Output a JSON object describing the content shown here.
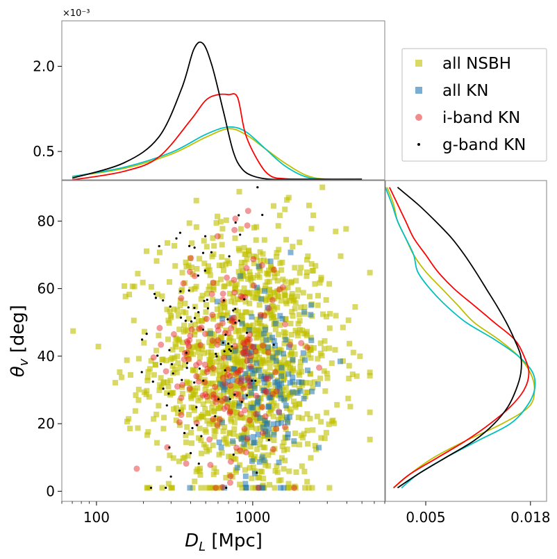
{
  "chart_data": [
    {
      "panel": "top-marginal",
      "type": "line",
      "exponent_label": "×10⁻³",
      "xscale": "log",
      "xlim": [
        60,
        7000
      ],
      "ylim": [
        0.0,
        2.8
      ],
      "yticks": [
        0.5,
        2.0
      ],
      "ytick_labels": [
        "0.5",
        "2.0"
      ],
      "series": [
        {
          "color": "#bfbf00",
          "x": [
            70,
            150,
            300,
            500,
            700,
            900,
            1200,
            1600,
            2200,
            3000,
            5000
          ],
          "y": [
            0.06,
            0.2,
            0.45,
            0.75,
            0.9,
            0.8,
            0.55,
            0.3,
            0.08,
            0.01,
            0.01
          ]
        },
        {
          "color": "#00bfbf",
          "x": [
            70,
            150,
            300,
            500,
            700,
            900,
            1200,
            1600,
            2200,
            3000,
            5000
          ],
          "y": [
            0.06,
            0.22,
            0.48,
            0.8,
            0.93,
            0.85,
            0.55,
            0.25,
            0.05,
            0.01,
            0.01
          ]
        },
        {
          "color": "#ff0000",
          "x": [
            70,
            150,
            250,
            400,
            500,
            600,
            700,
            800,
            900,
            1100,
            1300,
            1600,
            2200,
            5000
          ],
          "y": [
            0.0,
            0.15,
            0.4,
            1.05,
            1.4,
            1.5,
            1.5,
            1.45,
            0.8,
            0.3,
            0.07,
            0.02,
            0.01,
            0.01
          ]
        },
        {
          "color": "#000000",
          "x": [
            70,
            150,
            250,
            350,
            420,
            480,
            550,
            650,
            750,
            850,
            1000,
            1300,
            2000,
            5000
          ],
          "y": [
            0.03,
            0.3,
            0.75,
            1.6,
            2.3,
            2.4,
            2.0,
            1.2,
            0.5,
            0.2,
            0.07,
            0.01,
            0.01,
            0.01
          ]
        }
      ]
    },
    {
      "panel": "scatter",
      "type": "scatter",
      "xlabel": "D_L [Mpc]",
      "ylabel": "θ_v [deg]",
      "xscale": "log",
      "xlim": [
        60,
        7000
      ],
      "ylim": [
        -3,
        92
      ],
      "xticks": [
        100,
        1000
      ],
      "xtick_labels": [
        "100",
        "1000"
      ],
      "yticks": [
        0,
        20,
        40,
        60,
        80
      ],
      "ytick_labels": [
        "0",
        "20",
        "40",
        "60",
        "80"
      ],
      "legend_position": "top-right",
      "series": [
        {
          "name": "all NSBH",
          "color": "#bfbf00",
          "marker": "square",
          "n_points": 1200,
          "distribution": {
            "logx_mean": 2.95,
            "logx_sd": 0.3,
            "y_mean": 38,
            "y_sd": 20
          }
        },
        {
          "name": "all KN",
          "color": "#1f77b4",
          "marker": "square",
          "n_points": 170,
          "distribution": {
            "logx_mean": 3.08,
            "logx_sd": 0.15,
            "y_mean": 32,
            "y_sd": 15
          }
        },
        {
          "name": "i-band KN",
          "color": "#e41a1c",
          "marker": "circle",
          "n_points": 180,
          "distribution": {
            "logx_mean": 2.85,
            "logx_sd": 0.2,
            "y_mean": 38,
            "y_sd": 17
          }
        },
        {
          "name": "g-band KN",
          "color": "#000000",
          "marker": "dot",
          "n_points": 95,
          "distribution": {
            "logx_mean": 2.7,
            "logx_sd": 0.22,
            "y_mean": 42,
            "y_sd": 22
          }
        }
      ]
    },
    {
      "panel": "right-marginal",
      "type": "line",
      "xlim": [
        0.0,
        0.02
      ],
      "xticks": [
        0.005,
        0.018
      ],
      "xtick_labels": [
        "0.005",
        "0.018"
      ],
      "ylim": [
        -3,
        92
      ],
      "series": [
        {
          "color": "#bfbf00",
          "y": [
            1,
            5,
            10,
            15,
            20,
            25,
            30,
            35,
            40,
            45,
            50,
            55,
            60,
            65,
            70,
            75,
            80,
            85,
            90
          ],
          "x": [
            0.001,
            0.003,
            0.006,
            0.01,
            0.0145,
            0.0178,
            0.0185,
            0.018,
            0.0165,
            0.014,
            0.011,
            0.009,
            0.007,
            0.005,
            0.0035,
            0.0025,
            0.0015,
            0.001,
            0.0002
          ]
        },
        {
          "color": "#00bfbf",
          "y": [
            1,
            5,
            10,
            15,
            20,
            25,
            30,
            35,
            40,
            45,
            50,
            55,
            60,
            65,
            70,
            75,
            80,
            85,
            90
          ],
          "x": [
            0.002,
            0.004,
            0.0075,
            0.0115,
            0.0155,
            0.0175,
            0.0185,
            0.0183,
            0.0165,
            0.0135,
            0.01,
            0.0075,
            0.0055,
            0.004,
            0.0035,
            0.0025,
            0.0015,
            0.0008,
            0.0
          ]
        },
        {
          "color": "#ff0000",
          "y": [
            1,
            5,
            10,
            15,
            20,
            25,
            30,
            35,
            40,
            45,
            50,
            55,
            60,
            65,
            70,
            75,
            80,
            85,
            90
          ],
          "x": [
            0.001,
            0.003,
            0.0065,
            0.01,
            0.013,
            0.0155,
            0.0172,
            0.0178,
            0.0172,
            0.016,
            0.0135,
            0.011,
            0.0085,
            0.0065,
            0.005,
            0.0035,
            0.0025,
            0.0015,
            0.0005
          ]
        },
        {
          "color": "#000000",
          "y": [
            1,
            5,
            10,
            15,
            20,
            25,
            30,
            35,
            40,
            45,
            50,
            55,
            60,
            65,
            70,
            75,
            80,
            85,
            90
          ],
          "x": [
            0.0015,
            0.004,
            0.0075,
            0.011,
            0.0135,
            0.0152,
            0.0162,
            0.0168,
            0.0168,
            0.016,
            0.015,
            0.0138,
            0.0125,
            0.0112,
            0.0098,
            0.0082,
            0.0062,
            0.004,
            0.0015
          ]
        }
      ]
    }
  ],
  "legend": {
    "items": [
      {
        "label": "all NSBH",
        "color": "#bfbf00",
        "marker": "square"
      },
      {
        "label": "all KN",
        "color": "#1f77b4",
        "marker": "square"
      },
      {
        "label": "i-band KN",
        "color": "#e41a1c",
        "marker": "circle"
      },
      {
        "label": "g-band KN",
        "color": "#000000",
        "marker": "dot"
      }
    ]
  }
}
